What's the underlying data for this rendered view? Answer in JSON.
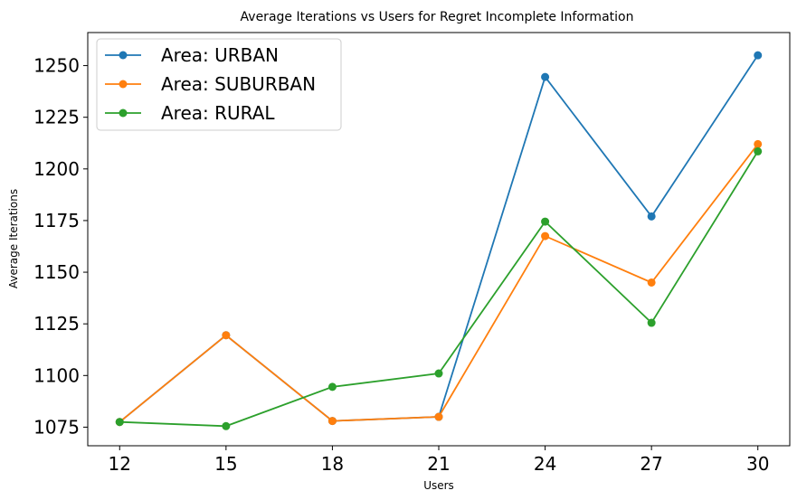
{
  "chart_data": {
    "type": "line",
    "title": "Average Iterations vs Users for Regret Incomplete Information",
    "xlabel": "Users",
    "ylabel": "Average Iterations",
    "x": [
      12,
      15,
      18,
      21,
      24,
      27,
      30
    ],
    "xlim": [
      11.1,
      30.9
    ],
    "ylim": [
      1066,
      1266
    ],
    "yticks": [
      1075,
      1100,
      1125,
      1150,
      1175,
      1200,
      1225,
      1250
    ],
    "grid": false,
    "legend_position": "top-left",
    "series": [
      {
        "name": "Area: URBAN",
        "color": "#1f77b4",
        "values": [
          1077.5,
          1119.5,
          1078,
          1080,
          1244.5,
          1177,
          1255
        ]
      },
      {
        "name": "Area: SUBURBAN",
        "color": "#ff7f0e",
        "values": [
          1077.5,
          1119.5,
          1078,
          1080,
          1167.5,
          1145,
          1212
        ]
      },
      {
        "name": "Area: RURAL",
        "color": "#2ca02c",
        "values": [
          1077.5,
          1075.5,
          1094.5,
          1101,
          1174.5,
          1125.5,
          1208.5
        ]
      }
    ]
  }
}
